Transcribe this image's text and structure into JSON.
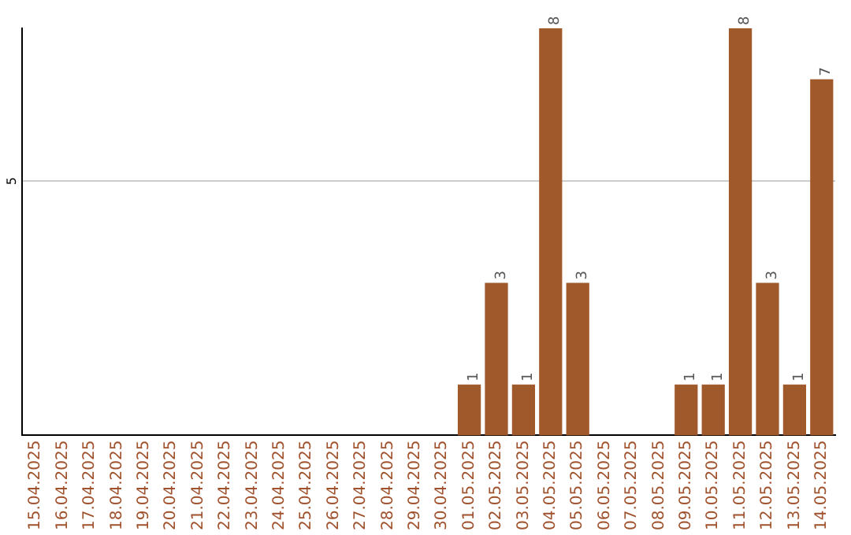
{
  "chart_data": {
    "type": "bar",
    "categories": [
      "15.04.2025",
      "16.04.2025",
      "17.04.2025",
      "18.04.2025",
      "19.04.2025",
      "20.04.2025",
      "21.04.2025",
      "22.04.2025",
      "23.04.2025",
      "24.04.2025",
      "25.04.2025",
      "26.04.2025",
      "27.04.2025",
      "28.04.2025",
      "29.04.2025",
      "30.04.2025",
      "01.05.2025",
      "02.05.2025",
      "03.05.2025",
      "04.05.2025",
      "05.05.2025",
      "06.05.2025",
      "07.05.2025",
      "08.05.2025",
      "09.05.2025",
      "10.05.2025",
      "11.05.2025",
      "12.05.2025",
      "13.05.2025",
      "14.05.2025"
    ],
    "values": [
      null,
      null,
      null,
      null,
      null,
      null,
      null,
      null,
      null,
      null,
      null,
      null,
      null,
      null,
      null,
      null,
      1,
      3,
      1,
      8,
      3,
      null,
      null,
      null,
      1,
      1,
      8,
      3,
      1,
      7
    ],
    "data_labels": true,
    "color": "#a0592a",
    "ylim": [
      0,
      8
    ],
    "yticks": [
      5
    ],
    "grid": "y",
    "legend": false
  }
}
